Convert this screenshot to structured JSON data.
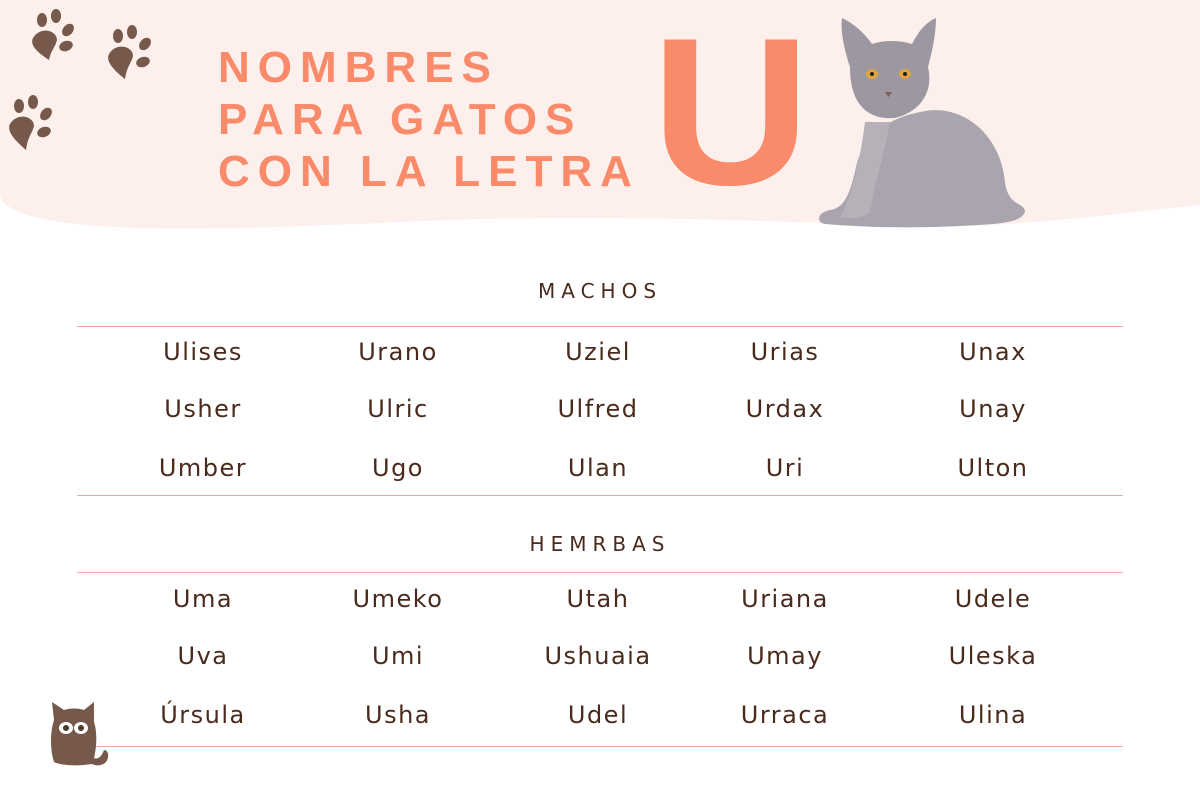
{
  "header": {
    "title_lines": [
      "NOMBRES",
      "PARA GATOS",
      "CON LA LETRA"
    ],
    "letter": "U"
  },
  "colors": {
    "accent": "#f98a6a",
    "background_wave": "#fdf0ec",
    "brown": "#76594a",
    "rule": "#f3a79a",
    "text": "#4a2a1c"
  },
  "icons": [
    "paw-print-icon",
    "cat-illustration",
    "cat-silhouette-icon"
  ],
  "machos": {
    "heading": "MACHOS",
    "rows": [
      [
        "Ulises",
        "Urano",
        "Uziel",
        "Urias",
        "Unax"
      ],
      [
        "Usher",
        "Ulric",
        "Ulfred",
        "Urdax",
        "Unay"
      ],
      [
        "Umber",
        "Ugo",
        "Ulan",
        "Uri",
        "Ulton"
      ]
    ]
  },
  "hembras": {
    "heading": "HEMRBAS",
    "rows": [
      [
        "Uma",
        "Umeko",
        "Utah",
        "Uriana",
        "Udele"
      ],
      [
        "Uva",
        "Umi",
        "Ushuaia",
        "Umay",
        "Uleska"
      ],
      [
        "Úrsula",
        "Usha",
        "Udel",
        "Urraca",
        "Ulina"
      ]
    ]
  }
}
